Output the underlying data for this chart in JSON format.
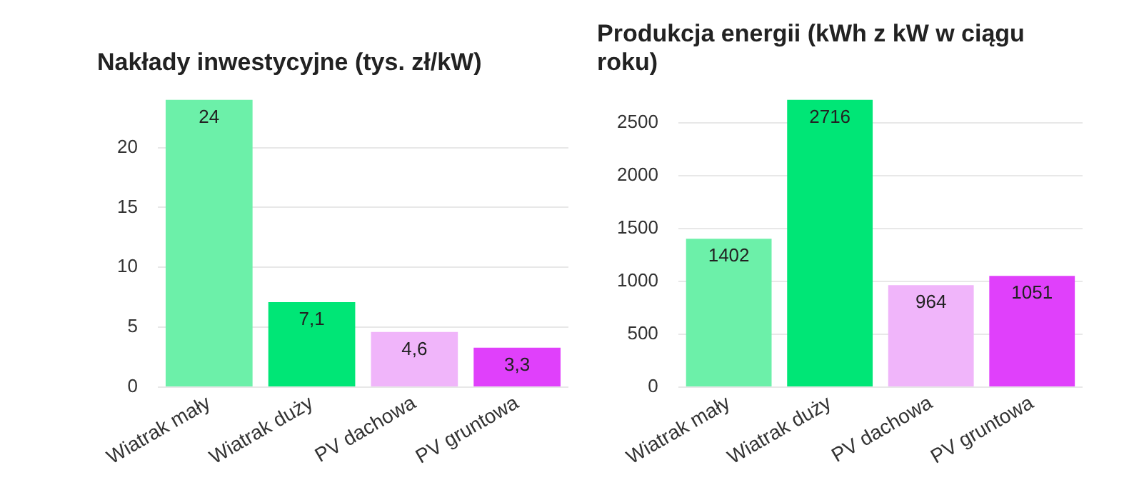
{
  "chart_data": [
    {
      "type": "bar",
      "title": "Nakłady inwestycyjne (tys. zł/kW)",
      "categories": [
        "Wiatrak mały",
        "Wiatrak duży",
        "PV dachowa",
        "PV gruntowa"
      ],
      "values": [
        24,
        7.1,
        4.6,
        3.3
      ],
      "value_labels": [
        "24",
        "7,1",
        "4,6",
        "3,3"
      ],
      "colors": [
        "#6cf0a9",
        "#00e676",
        "#f0b5fa",
        "#e040fb"
      ],
      "ylim": [
        0,
        24
      ],
      "yticks": [
        0,
        5,
        10,
        15,
        20
      ],
      "grid": "y",
      "legend": false
    },
    {
      "type": "bar",
      "title": "Produkcja energii (kWh z kW w ciągu roku)",
      "categories": [
        "Wiatrak mały",
        "Wiatrak duży",
        "PV dachowa",
        "PV gruntowa"
      ],
      "values": [
        1402,
        2716,
        964,
        1051
      ],
      "value_labels": [
        "1402",
        "2716",
        "964",
        "1051"
      ],
      "colors": [
        "#6cf0a9",
        "#00e676",
        "#f0b5fa",
        "#e040fb"
      ],
      "ylim": [
        0,
        2716
      ],
      "yticks": [
        0,
        500,
        {
          "value": 1000,
          "label": "1000"
        },
        {
          "value": 1500,
          "label": "1500"
        },
        {
          "value": 2000,
          "label": "2000"
        },
        {
          "value": 2500,
          "label": "2500"
        }
      ],
      "grid": "y",
      "legend": false
    }
  ]
}
